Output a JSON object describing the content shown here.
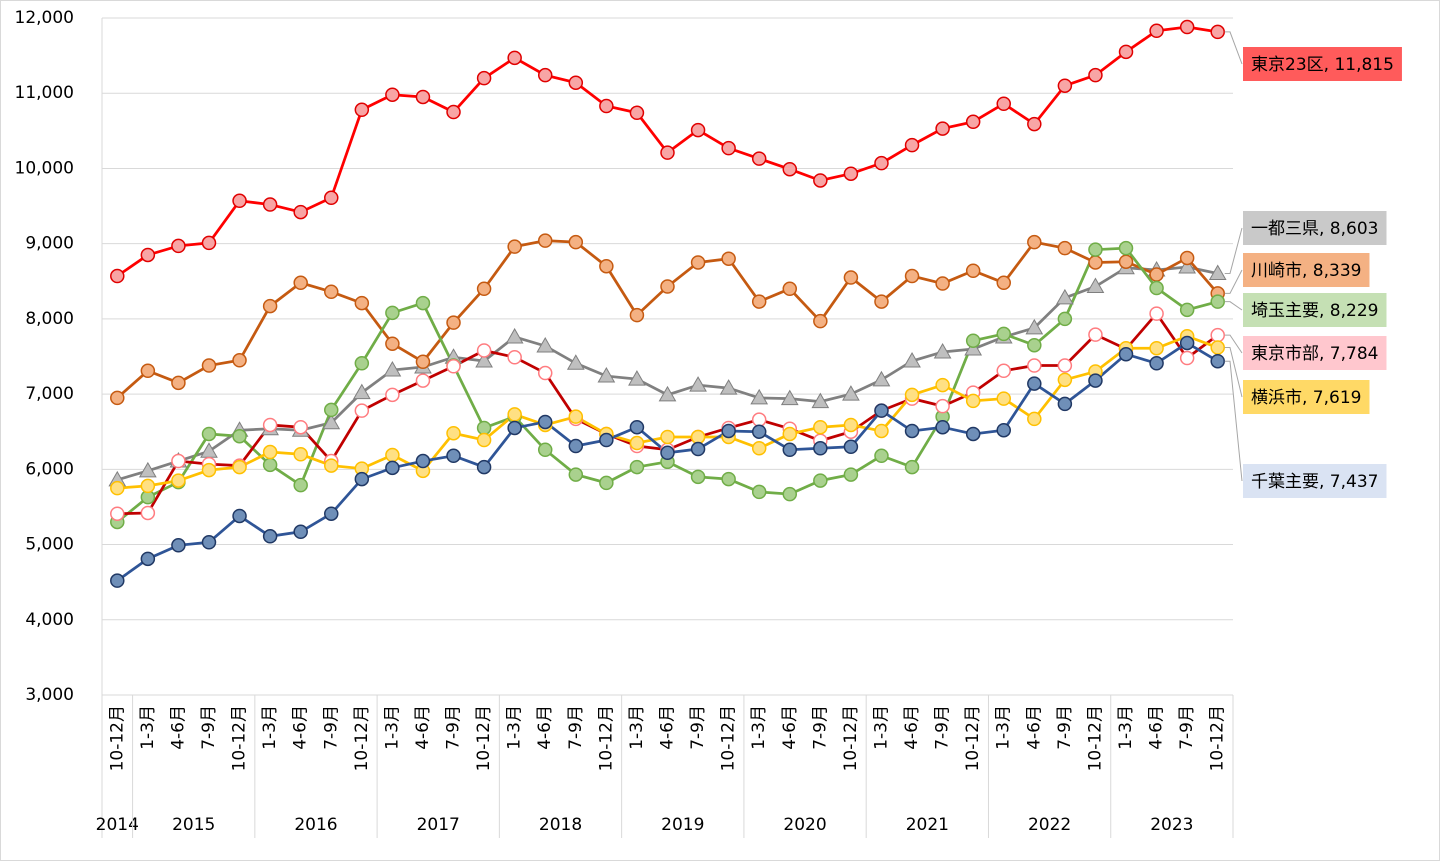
{
  "chart_data": {
    "type": "line",
    "categories": [
      "10-12月",
      "1-3月",
      "4-6月",
      "7-9月",
      "10-12月",
      "1-3月",
      "4-6月",
      "7-9月",
      "10-12月",
      "1-3月",
      "4-6月",
      "7-9月",
      "10-12月",
      "1-3月",
      "4-6月",
      "7-9月",
      "10-12月",
      "1-3月",
      "4-6月",
      "7-9月",
      "10-12月",
      "1-3月",
      "4-6月",
      "7-9月",
      "10-12月",
      "1-3月",
      "4-6月",
      "7-9月",
      "10-12月",
      "1-3月",
      "4-6月",
      "7-9月",
      "10-12月",
      "1-3月",
      "4-6月",
      "7-9月",
      "10-12月"
    ],
    "category_years": [
      "2014",
      "2015",
      null,
      null,
      null,
      "2016",
      null,
      null,
      null,
      "2017",
      null,
      null,
      null,
      "2018",
      null,
      null,
      null,
      "2019",
      null,
      null,
      null,
      "2020",
      null,
      null,
      null,
      "2021",
      null,
      null,
      null,
      "2022",
      null,
      null,
      null,
      "2023",
      null,
      null,
      null
    ],
    "ylim": [
      3000,
      12000
    ],
    "yticks": [
      {
        "value": 3000,
        "label": "3,000"
      },
      {
        "value": 4000,
        "label": "4,000"
      },
      {
        "value": 5000,
        "label": "5,000"
      },
      {
        "value": 6000,
        "label": "6,000"
      },
      {
        "value": 7000,
        "label": "7,000"
      },
      {
        "value": 8000,
        "label": "8,000"
      },
      {
        "value": 9000,
        "label": "9,000"
      },
      {
        "value": 10000,
        "label": "10,000"
      },
      {
        "value": 11000,
        "label": "11,000"
      },
      {
        "value": 12000,
        "label": "12,000"
      }
    ],
    "grid": true,
    "series": [
      {
        "name": "東京23区",
        "color": "#ff0000",
        "marker": "circle",
        "marker_fill": "#f8a5a5",
        "marker_stroke": "#e00000",
        "label_fill": "#ff5b5b",
        "end_label": "東京23区, 11,815",
        "values": [
          8570,
          8850,
          8970,
          9010,
          9570,
          9520,
          9420,
          9610,
          10780,
          10980,
          10950,
          10750,
          11200,
          11470,
          11240,
          11140,
          10830,
          10740,
          10210,
          10510,
          10270,
          10130,
          9990,
          9840,
          9930,
          10070,
          10310,
          10530,
          10620,
          10860,
          10590,
          11100,
          11240,
          11550,
          11830,
          11880,
          11815
        ]
      },
      {
        "name": "一都三県",
        "color": "#808080",
        "marker": "triangle",
        "marker_fill": "#bfbfbf",
        "marker_stroke": "#7f7f7f",
        "label_fill": "#c9c9c9",
        "end_label": "一都三県, 8,603",
        "values": [
          5860,
          5980,
          6110,
          6240,
          6520,
          6540,
          6520,
          6620,
          7020,
          7320,
          7360,
          7490,
          7440,
          7760,
          7640,
          7410,
          7240,
          7200,
          6990,
          7120,
          7080,
          6950,
          6940,
          6900,
          7000,
          7190,
          7440,
          7560,
          7600,
          7760,
          7880,
          8280,
          8430,
          8680,
          8650,
          8690,
          8603
        ]
      },
      {
        "name": "川崎市",
        "color": "#c55a11",
        "marker": "circle",
        "marker_fill": "#f4b183",
        "marker_stroke": "#c55a11",
        "label_fill": "#f4b183",
        "end_label": "川崎市, 8,339",
        "values": [
          6950,
          7310,
          7150,
          7380,
          7450,
          8170,
          8480,
          8360,
          8210,
          7670,
          7430,
          7950,
          8400,
          8960,
          9040,
          9020,
          8700,
          8050,
          8430,
          8750,
          8800,
          8230,
          8400,
          7970,
          8550,
          8230,
          8570,
          8470,
          8640,
          8480,
          9020,
          8940,
          8750,
          8760,
          8590,
          8810,
          8339
        ]
      },
      {
        "name": "埼玉主要",
        "color": "#70ad47",
        "marker": "circle",
        "marker_fill": "#a9d18e",
        "marker_stroke": "#70ad47",
        "label_fill": "#c5e0b4",
        "end_label": "埼玉主要, 8,229",
        "values": [
          5300,
          5630,
          5830,
          6470,
          6440,
          6060,
          5790,
          6790,
          7410,
          8080,
          8210,
          7380,
          6550,
          6700,
          6260,
          5930,
          5820,
          6030,
          6100,
          5900,
          5870,
          5700,
          5670,
          5850,
          5930,
          6180,
          6030,
          6700,
          7710,
          7800,
          7650,
          8000,
          8920,
          8940,
          8410,
          8120,
          8229
        ]
      },
      {
        "name": "東京市部",
        "color": "#c00000",
        "marker": "circle",
        "marker_fill": "#ffffff",
        "marker_stroke": "#ff7c80",
        "label_fill": "#ffc7ce",
        "end_label": "東京市部, 7,784",
        "values": [
          5410,
          5420,
          6110,
          6070,
          6050,
          6590,
          6560,
          6110,
          6780,
          6990,
          7180,
          7370,
          7580,
          7490,
          7280,
          6670,
          6470,
          6310,
          6260,
          6430,
          6550,
          6660,
          6540,
          6380,
          6500,
          6780,
          6940,
          6840,
          7020,
          7310,
          7380,
          7380,
          7790,
          7600,
          8070,
          7480,
          7784
        ]
      },
      {
        "name": "横浜市",
        "color": "#ffc000",
        "marker": "circle",
        "marker_fill": "#ffe083",
        "marker_stroke": "#ffc000",
        "label_fill": "#ffd966",
        "end_label": "横浜市, 7,619",
        "values": [
          5750,
          5780,
          5850,
          5990,
          6030,
          6230,
          6200,
          6050,
          6010,
          6190,
          5980,
          6480,
          6390,
          6730,
          6590,
          6700,
          6470,
          6350,
          6430,
          6430,
          6430,
          6280,
          6470,
          6560,
          6590,
          6510,
          6990,
          7120,
          6910,
          6940,
          6670,
          7190,
          7300,
          7610,
          7610,
          7770,
          7619
        ]
      },
      {
        "name": "千葉主要",
        "color": "#2f5597",
        "marker": "circle",
        "marker_fill": "#6f8fb8",
        "marker_stroke": "#203864",
        "label_fill": "#dae3f3",
        "end_label": "千葉主要, 7,437",
        "values": [
          4520,
          4810,
          4990,
          5030,
          5380,
          5110,
          5170,
          5410,
          5870,
          6020,
          6110,
          6180,
          6030,
          6550,
          6630,
          6310,
          6390,
          6560,
          6220,
          6270,
          6510,
          6500,
          6260,
          6280,
          6300,
          6780,
          6510,
          6560,
          6470,
          6520,
          7140,
          6870,
          7180,
          7530,
          7410,
          7680,
          7437
        ]
      }
    ]
  }
}
